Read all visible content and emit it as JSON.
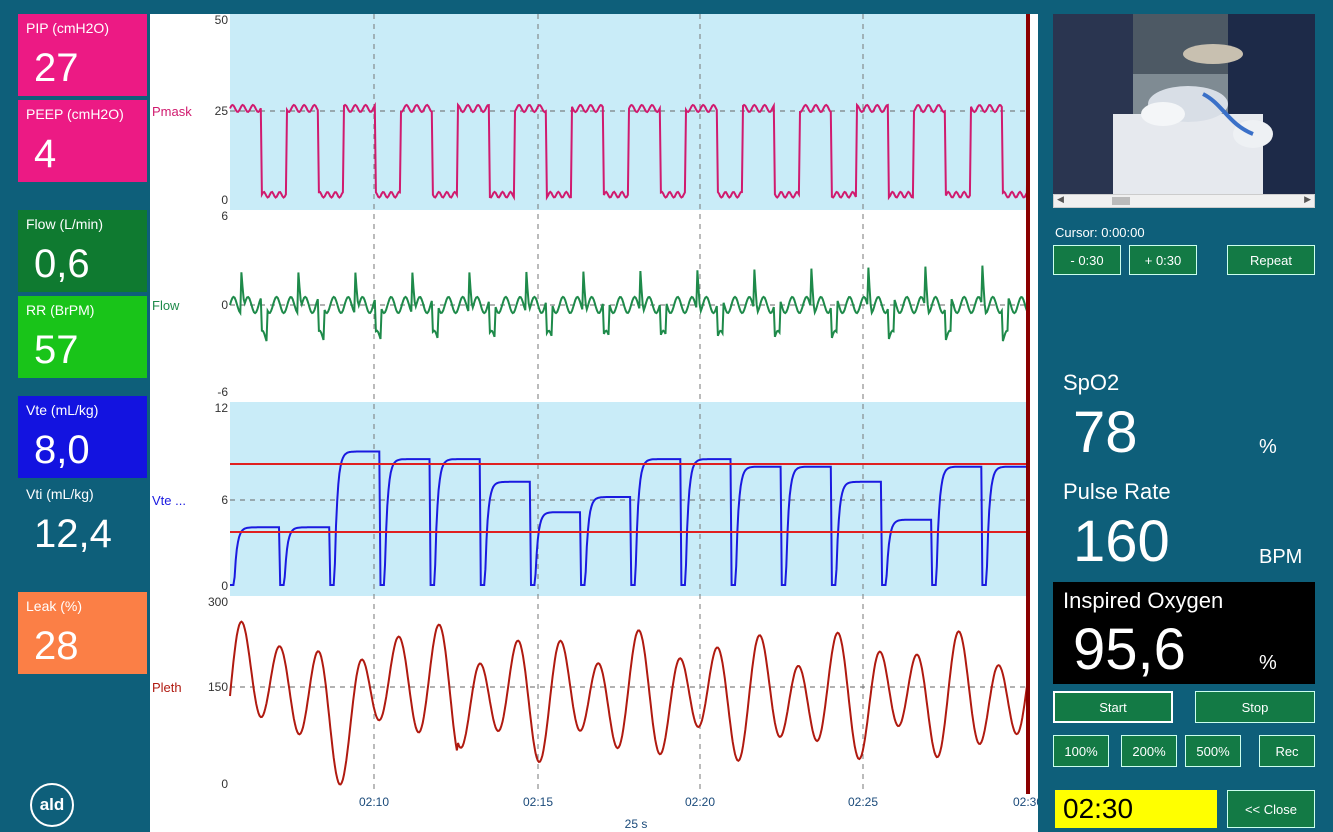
{
  "metrics": [
    {
      "label": "PIP (cmH2O)",
      "value": "27",
      "color": "#ec1a84"
    },
    {
      "label": "PEEP (cmH2O)",
      "value": "4",
      "color": "#ec1a84"
    },
    {
      "label": "Flow (L/min)",
      "value": "0,6",
      "color": "#0f7a30"
    },
    {
      "label": "RR (BrPM)",
      "value": "57",
      "color": "#19c419"
    },
    {
      "label": "Vte (mL/kg)",
      "value": "8,0",
      "color": "#1313e0"
    },
    {
      "label": "Vti (mL/kg)",
      "value": "12,4",
      "color": "#0e5f7a"
    },
    {
      "label": "Leak (%)",
      "value": "28",
      "color": "#fb7f46"
    }
  ],
  "logo_text": "ald",
  "charts": {
    "panels": [
      {
        "name": "Pmask",
        "color": "#d01a6e",
        "ticks": [
          "50",
          "25",
          "0"
        ]
      },
      {
        "name": "Flow",
        "color": "#1e8a4a",
        "ticks": [
          "6",
          "0",
          "-6"
        ]
      },
      {
        "name": "Vte ...",
        "color": "#1a1ae0",
        "ticks": [
          "12",
          "6",
          "0"
        ]
      },
      {
        "name": "Pleth",
        "color": "#b01a10",
        "ticks": [
          "300",
          "150",
          "0"
        ]
      }
    ],
    "time_ticks": [
      "02:10",
      "02:15",
      "02:20",
      "02:25",
      "02:30"
    ],
    "time_span": "25 s"
  },
  "video": {
    "scroll_left": "◀",
    "scroll_right": "▶"
  },
  "cursor_text": "Cursor: 0:00:00",
  "buttons": {
    "back": "- 0:30",
    "forward": "+ 0:30",
    "repeat": "Repeat",
    "start": "Start",
    "stop": "Stop",
    "zoom100": "100%",
    "zoom200": "200%",
    "zoom500": "500%",
    "rec": "Rec",
    "close": "<< Close"
  },
  "vitals": {
    "spo2_label": "SpO2",
    "spo2_value": "78",
    "spo2_unit": "%",
    "pulse_label": "Pulse Rate",
    "pulse_value": "160",
    "pulse_unit": "BPM",
    "oxygen_label": "Inspired Oxygen",
    "oxygen_value": "95,6",
    "oxygen_unit": "%"
  },
  "elapsed_time": "02:30",
  "colors": {
    "background": "#0e5f7a",
    "plot_band": "#c9ecf8",
    "vte_limit_line": "#e02020",
    "cursor_line": "#8b0000",
    "button_green": "#137a45",
    "time_highlight": "#ffff00"
  }
}
